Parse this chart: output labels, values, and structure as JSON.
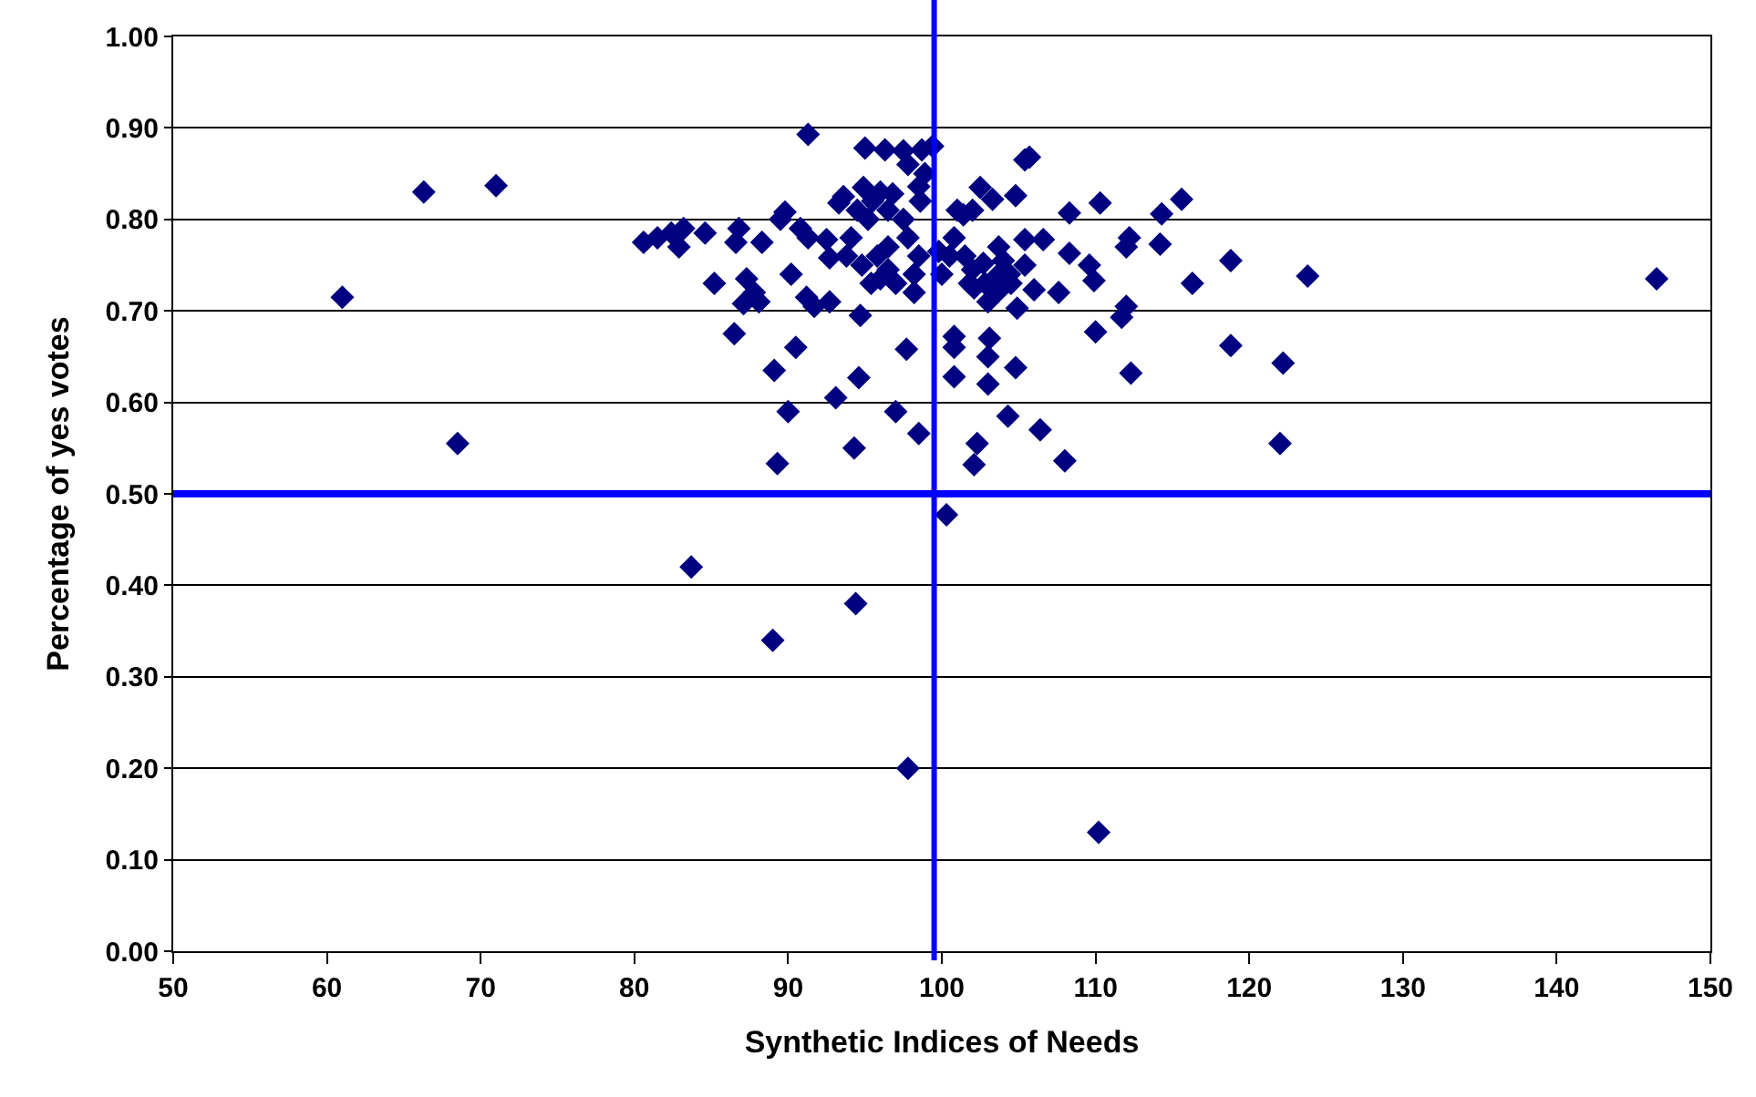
{
  "chart_data": {
    "type": "scatter",
    "xlabel": "Synthetic Indices of Needs",
    "ylabel": "Percentage of yes votes",
    "xlim": [
      50,
      150
    ],
    "xticks": [
      50,
      60,
      70,
      80,
      90,
      100,
      110,
      120,
      130,
      140,
      150
    ],
    "ylim": [
      0,
      1
    ],
    "yticks": [
      {
        "value": 0,
        "label": "0.00"
      },
      {
        "value": 0.1,
        "label": "0.10"
      },
      {
        "value": 0.2,
        "label": "0.20"
      },
      {
        "value": 0.3,
        "label": "0.30"
      },
      {
        "value": 0.4,
        "label": "0.40"
      },
      {
        "value": 0.5,
        "label": "0.50"
      },
      {
        "value": 0.6,
        "label": "0.60"
      },
      {
        "value": 0.7,
        "label": "0.70"
      },
      {
        "value": 0.8,
        "label": "0.80"
      },
      {
        "value": 0.9,
        "label": "0.90"
      },
      {
        "value": 1,
        "label": "1.00"
      }
    ],
    "grid": "y",
    "marker": "diamond",
    "ref_lines": [
      {
        "axis": "y",
        "value": 0.5,
        "color": "#0000ff"
      },
      {
        "axis": "x",
        "value": 99.5,
        "color": "#0000ff"
      }
    ],
    "series": [
      {
        "color": "#000080",
        "x": [
          61,
          66.3,
          71,
          68.5,
          146.5,
          83.7,
          89,
          94.4,
          97.8,
          110.2,
          100.3,
          122,
          122.2,
          118.8,
          123.8,
          118.8,
          116.3,
          115.6,
          114.3,
          114.2,
          112.3,
          112,
          111.7,
          112,
          112.2,
          110.3,
          110,
          109.9,
          109.6,
          108.3,
          108.3,
          108,
          107.6,
          106.4,
          106.6,
          106,
          105.4,
          105.7,
          105.4,
          104.9,
          104.8,
          104.3,
          104.8,
          103.7,
          103.7,
          103.1,
          103,
          103,
          102.3,
          102.1,
          102.5,
          102,
          101.8,
          101.4,
          100.8,
          100.5,
          100.8,
          100.8,
          100.8,
          100,
          99.8,
          99.4,
          98.7,
          98.9,
          98.5,
          98.6,
          98.5,
          98.5,
          97.8,
          97.5,
          97.8,
          98.2,
          97.7,
          97,
          96.8,
          96.5,
          96.3,
          96.5,
          96,
          95.5,
          95.8,
          95.4,
          95,
          94.9,
          94.5,
          94.8,
          94.7,
          94.3,
          94.6,
          94.1,
          93.8,
          93.6,
          93.3,
          93.1,
          92.7,
          92.7,
          92.5,
          91.7,
          91.3,
          91.3,
          91.2,
          90.8,
          90.5,
          90.2,
          90,
          89.8,
          89.5,
          89.3,
          89.1,
          88.1,
          88.3,
          87.8,
          87.3,
          87.1,
          86.8,
          86.6,
          86.5,
          85.2,
          84.6,
          83.2,
          82.9,
          82.4,
          81.5,
          80.6,
          103.3,
          102.7,
          102,
          101.5,
          102.8,
          103.6,
          104.4,
          105.4,
          104,
          104.5,
          103,
          102.1,
          98.2,
          97,
          96.5,
          97.5,
          95.2,
          96,
          101
        ],
        "values": [
          0.715,
          0.83,
          0.837,
          0.555,
          0.735,
          0.42,
          0.34,
          0.38,
          0.2,
          0.13,
          0.477,
          0.555,
          0.643,
          0.662,
          0.738,
          0.755,
          0.73,
          0.822,
          0.806,
          0.773,
          0.632,
          0.705,
          0.693,
          0.77,
          0.78,
          0.818,
          0.677,
          0.733,
          0.75,
          0.763,
          0.807,
          0.536,
          0.72,
          0.57,
          0.778,
          0.723,
          0.865,
          0.868,
          0.778,
          0.703,
          0.638,
          0.585,
          0.826,
          0.77,
          0.74,
          0.67,
          0.65,
          0.62,
          0.555,
          0.532,
          0.835,
          0.81,
          0.73,
          0.805,
          0.78,
          0.76,
          0.672,
          0.66,
          0.628,
          0.74,
          0.765,
          0.88,
          0.876,
          0.85,
          0.836,
          0.82,
          0.76,
          0.566,
          0.86,
          0.875,
          0.78,
          0.72,
          0.658,
          0.59,
          0.828,
          0.81,
          0.876,
          0.745,
          0.735,
          0.82,
          0.76,
          0.73,
          0.878,
          0.835,
          0.81,
          0.75,
          0.695,
          0.55,
          0.627,
          0.78,
          0.76,
          0.825,
          0.818,
          0.605,
          0.758,
          0.71,
          0.778,
          0.705,
          0.893,
          0.78,
          0.715,
          0.79,
          0.66,
          0.74,
          0.59,
          0.808,
          0.8,
          0.533,
          0.635,
          0.71,
          0.775,
          0.72,
          0.735,
          0.708,
          0.79,
          0.775,
          0.675,
          0.73,
          0.785,
          0.79,
          0.77,
          0.785,
          0.78,
          0.775,
          0.822,
          0.752,
          0.745,
          0.76,
          0.73,
          0.72,
          0.74,
          0.75,
          0.755,
          0.73,
          0.71,
          0.725,
          0.74,
          0.73,
          0.77,
          0.8,
          0.8,
          0.83,
          0.81
        ]
      }
    ]
  }
}
